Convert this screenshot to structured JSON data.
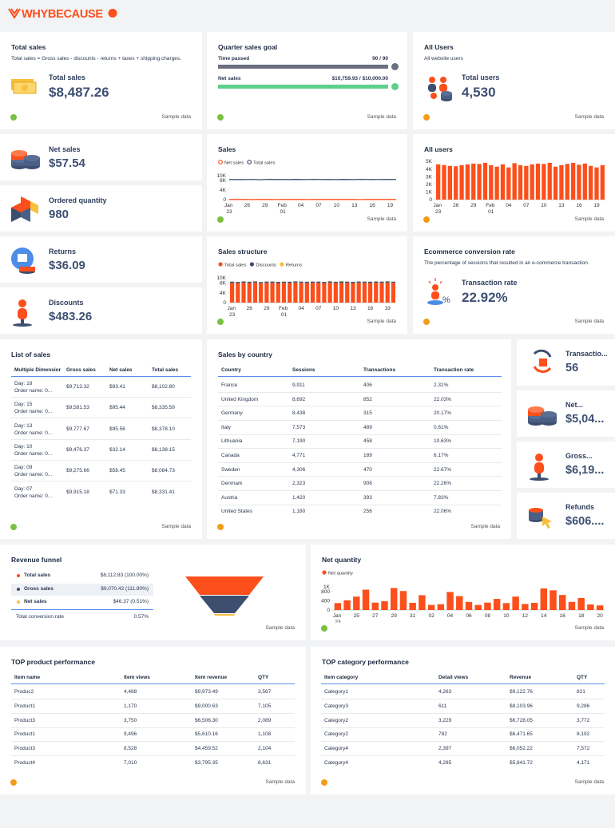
{
  "header": {
    "logo": "WHYBECAUSE"
  },
  "total_sales_card": {
    "title": "Total sales",
    "subtitle": "Total sales = Gross sales - discounts - returns + taxes + shipping charges.",
    "label": "Total sales",
    "value": "$8,487.26",
    "footer": "Sample data"
  },
  "quarter_goal": {
    "title": "Quarter sales goal",
    "rows": [
      {
        "label": "Time passed",
        "value": "90 / 90"
      },
      {
        "label": "Net sales",
        "value": "$10,759.93 / $10,000.00"
      }
    ],
    "footer": "Sample data"
  },
  "all_users_card": {
    "title": "All Users",
    "subtitle": "All website users",
    "label": "Total users",
    "value": "4,530",
    "footer": "Sample data"
  },
  "net_sales_card": {
    "label": "Net sales",
    "value": "$57.54"
  },
  "ordered_quantity_card": {
    "label": "Ordered quantity",
    "value": "980"
  },
  "returns_card": {
    "label": "Returns",
    "value": "$36.09"
  },
  "discounts_card": {
    "label": "Discounts",
    "value": "$483.26"
  },
  "sales_chart": {
    "type": "line",
    "title": "Sales",
    "footer": "Sample data",
    "categories": [
      "Jan 23",
      null,
      null,
      "26",
      null,
      null,
      "29",
      null,
      null,
      "Feb 01",
      null,
      null,
      "04",
      null,
      null,
      "07",
      null,
      null,
      "10",
      null,
      null,
      "13",
      null,
      null,
      "16",
      null,
      null,
      "19",
      null
    ],
    "series": [
      {
        "name": "Net sales",
        "color": "#fc4f1b",
        "values": [
          57,
          60,
          55,
          58,
          52,
          61,
          56,
          59,
          54,
          57,
          60,
          55,
          58,
          53,
          59,
          57,
          62,
          56,
          58,
          55,
          60,
          57,
          54,
          59,
          56,
          58,
          61,
          55,
          57
        ]
      },
      {
        "name": "Total sales",
        "color": "#3d4e6e",
        "values": [
          8400,
          8350,
          8420,
          8380,
          8450,
          8300,
          8410,
          8440,
          8390,
          8420,
          8360,
          8430,
          8400,
          8380,
          8450,
          8410,
          8390,
          8420,
          8370,
          8440,
          8400,
          8380,
          8430,
          8410,
          8390,
          8420,
          8400,
          8440,
          8410
        ]
      }
    ],
    "ylim": [
      0,
      10000
    ],
    "yticks": [
      0,
      {
        "value": 4000,
        "label": "4K"
      },
      {
        "value": 8000,
        "label": "8K"
      },
      {
        "value": 10000,
        "label": "10K"
      }
    ]
  },
  "all_users_chart": {
    "type": "bar",
    "title": "All users",
    "footer": "Sample data",
    "color": "#fc4f1b",
    "categories": [
      "Jan 23",
      null,
      null,
      "26",
      null,
      null,
      "29",
      null,
      null,
      "Feb 01",
      null,
      null,
      "04",
      null,
      null,
      "07",
      null,
      null,
      "10",
      null,
      null,
      "13",
      null,
      null,
      "16",
      null,
      null,
      "19",
      null
    ],
    "values": [
      4600,
      4500,
      4400,
      4350,
      4500,
      4600,
      4700,
      4650,
      4800,
      4500,
      4300,
      4600,
      4200,
      4750,
      4500,
      4400,
      4600,
      4700,
      4650,
      4800,
      4300,
      4500,
      4650,
      4800,
      4550,
      4700,
      4400,
      4200,
      4500
    ],
    "ylim": [
      0,
      5000
    ],
    "yticks": [
      0,
      {
        "value": 1000,
        "label": "1K"
      },
      {
        "value": 2000,
        "label": "2K"
      },
      {
        "value": 3000,
        "label": "3K"
      },
      {
        "value": 4000,
        "label": "4K"
      },
      {
        "value": 5000,
        "label": "5K"
      }
    ]
  },
  "sales_structure_chart": {
    "type": "stacked_bar",
    "title": "Sales structure",
    "footer": "Sample data",
    "categories": [
      "Jan 23",
      null,
      null,
      "26",
      null,
      null,
      "29",
      null,
      null,
      "Feb 01",
      null,
      null,
      "04",
      null,
      null,
      "07",
      null,
      null,
      "10",
      null,
      null,
      "13",
      null,
      null,
      "16",
      null,
      null,
      "19",
      null
    ],
    "series": [
      {
        "name": "Total sales",
        "color": "#fc4f1b",
        "values": [
          8000,
          7900,
          8050,
          7950,
          8100,
          7850,
          8000,
          8050,
          7900,
          8000,
          7950,
          8100,
          8000,
          7950,
          8050,
          8000,
          7900,
          8100,
          7950,
          8050,
          8000,
          7900,
          8050,
          8000,
          7950,
          8050,
          8000,
          8100,
          8000
        ]
      },
      {
        "name": "Discounts",
        "color": "#3d4e6e",
        "values": [
          480,
          470,
          490,
          500,
          460,
          480,
          510,
          470,
          490,
          480,
          500,
          470,
          490,
          480,
          460,
          500,
          480,
          490,
          470,
          500,
          480,
          490,
          470,
          480,
          500,
          470,
          490,
          480,
          470
        ]
      },
      {
        "name": "Returns",
        "color": "#f9be3a",
        "values": [
          36,
          40,
          34,
          38,
          35,
          37,
          39,
          33,
          36,
          38,
          35,
          37,
          36,
          34,
          39,
          36,
          37,
          35,
          38,
          36,
          34,
          37,
          36,
          38,
          35,
          36,
          37,
          34,
          36
        ]
      }
    ],
    "ylim": [
      0,
      10000
    ],
    "yticks": [
      0,
      {
        "value": 4000,
        "label": "4K"
      },
      {
        "value": 8000,
        "label": "8K"
      },
      {
        "value": 10000,
        "label": "10K"
      }
    ]
  },
  "conversion_card": {
    "title": "Ecommerce conversion rate",
    "subtitle": "The percentage of sessions that resulted in an e-commerce transaction.",
    "label": "Transaction rate",
    "value": "22.92%",
    "footer": "Sample data"
  },
  "list_of_sales": {
    "title": "List of sales",
    "footer": "Sample data",
    "columns": [
      "Multiple Dimensior",
      "Gross sales",
      "Net sales",
      "Total sales"
    ],
    "rows": [
      [
        [
          "Day: 18",
          "Order name: 0..."
        ],
        "$9,713.32",
        "$93.41",
        "$8,102.80"
      ],
      [
        [
          "Day: 15",
          "Order name: 0..."
        ],
        "$9,581.53",
        "$95.44",
        "$8,335.59"
      ],
      [
        [
          "Day: 13",
          "Order name: 0..."
        ],
        "$9,777.67",
        "$95.56",
        "$8,378.10"
      ],
      [
        [
          "Day: 10",
          "Order name: 0..."
        ],
        "$9,476.37",
        "$32.14",
        "$8,138.15"
      ],
      [
        [
          "Day: 09",
          "Order name: 0..."
        ],
        "$9,275.66",
        "$58.45",
        "$8,084.73"
      ],
      [
        [
          "Day: 07",
          "Order name: 0..."
        ],
        "$9,915.18",
        "$71.33",
        "$8,331.41"
      ]
    ]
  },
  "sales_by_country": {
    "title": "Sales by country",
    "footer": "Sample data",
    "columns": [
      "Country",
      "Sessions",
      "Transactions",
      "Transaction rate"
    ],
    "rows": [
      [
        "France",
        "9,911",
        "406",
        "2.31%"
      ],
      [
        "United Kingdom",
        "8,692",
        "852",
        "22.03%"
      ],
      [
        "Germany",
        "8,438",
        "315",
        "20.17%"
      ],
      [
        "Italy",
        "7,573",
        "489",
        "0.61%"
      ],
      [
        "Lithuania",
        "7,190",
        "458",
        "10.63%"
      ],
      [
        "Canada",
        "4,771",
        "189",
        "6.17%"
      ],
      [
        "Sweden",
        "4,306",
        "470",
        "22.67%"
      ],
      [
        "Denmark",
        "2,323",
        "908",
        "22.26%"
      ],
      [
        "Austria",
        "1,420",
        "393",
        "7.83%"
      ],
      [
        "United States",
        "1,180",
        "256",
        "22.06%"
      ]
    ]
  },
  "side_cards": [
    {
      "label": "Transactio...",
      "value": "56"
    },
    {
      "label": "Net...",
      "value": "$5,04..."
    },
    {
      "label": "Gross...",
      "value": "$6,19..."
    },
    {
      "label": "Refunds",
      "value": "$606...."
    }
  ],
  "revenue_funnel": {
    "title": "Revenue funnel",
    "footer": "Sample data",
    "rows": [
      {
        "label": "Total sales",
        "value": "$8,112.83 (100.00%)"
      },
      {
        "label": "Gross sales",
        "value": "$9,070.43 (111.80%)"
      },
      {
        "label": "Net sales",
        "value": "$46.37 (0.51%)"
      }
    ],
    "total": {
      "label": "Total conversion rate",
      "value": "0.57%"
    }
  },
  "net_quantity_chart": {
    "type": "bar",
    "title": "Net quantity",
    "footer": "Sample data",
    "legend": "Net quantity",
    "color": "#fc4f1b",
    "categories": [
      "Jan 23",
      null,
      "25",
      null,
      "27",
      null,
      "29",
      null,
      "31",
      null,
      "02",
      null,
      "04",
      null,
      "06",
      null,
      "08",
      null,
      "10",
      null,
      "12",
      null,
      "14",
      null,
      "16",
      null,
      "18",
      null,
      "20"
    ],
    "values": [
      300,
      420,
      580,
      880,
      320,
      380,
      950,
      820,
      310,
      640,
      220,
      250,
      780,
      600,
      350,
      220,
      320,
      480,
      300,
      580,
      260,
      310,
      930,
      850,
      650,
      350,
      520,
      240,
      200
    ],
    "ylim": [
      0,
      1000
    ],
    "yticks": [
      0,
      400,
      800,
      {
        "value": 1000,
        "label": "1K"
      }
    ]
  },
  "top_products": {
    "title": "TOP product performance",
    "footer": "Sample data",
    "columns": [
      "Item name",
      "Item views",
      "Item revenue",
      "QTY"
    ],
    "rows": [
      [
        "Produc2",
        "4,488",
        "$9,973.49",
        "3,567"
      ],
      [
        "Product1",
        "1,170",
        "$9,000.63",
        "7,105"
      ],
      [
        "Product3",
        "3,750",
        "$6,506.30",
        "2,089"
      ],
      [
        "Product1",
        "9,496",
        "$5,610.16",
        "1,108"
      ],
      [
        "Product3",
        "8,528",
        "$4,459.52",
        "2,104"
      ],
      [
        "Product4",
        "7,010",
        "$3,795.35",
        "8,631"
      ]
    ]
  },
  "top_categories": {
    "title": "TOP category performance",
    "footer": "Sample data",
    "columns": [
      "Item category",
      "Detail views",
      "Revenue",
      "QTY"
    ],
    "rows": [
      [
        "Category1",
        "4,263",
        "$9,122.76",
        "821"
      ],
      [
        "Category3",
        "611",
        "$8,103.96",
        "9,286"
      ],
      [
        "Category2",
        "3,229",
        "$6,728.05",
        "3,772"
      ],
      [
        "Category2",
        "782",
        "$6,471.65",
        "8,192"
      ],
      [
        "Category4",
        "2,397",
        "$6,052.22",
        "7,572"
      ],
      [
        "Category4",
        "4,285",
        "$5,841.72",
        "4,171"
      ]
    ]
  }
}
